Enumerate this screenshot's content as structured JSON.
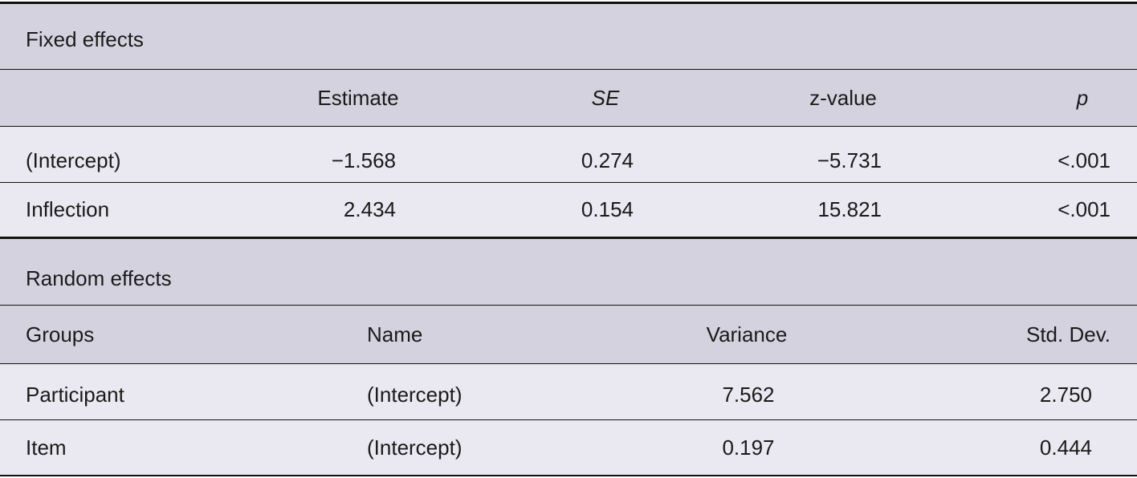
{
  "fixed_effects": {
    "title": "Fixed effects",
    "columns": [
      "Estimate",
      "SE",
      "z-value",
      "p"
    ],
    "rows": [
      [
        "(Intercept)",
        "−1.568",
        "0.274",
        "−5.731",
        "<.001"
      ],
      [
        "Inflection",
        "2.434",
        "0.154",
        "15.821",
        "<.001"
      ]
    ]
  },
  "random_effects": {
    "title": "Random effects",
    "columns": [
      "Groups",
      "Name",
      "Variance",
      "Std. Dev."
    ],
    "rows": [
      [
        "Participant",
        "(Intercept)",
        "7.562",
        "2.750"
      ],
      [
        "Item",
        "(Intercept)",
        "0.197",
        "0.444"
      ]
    ]
  }
}
